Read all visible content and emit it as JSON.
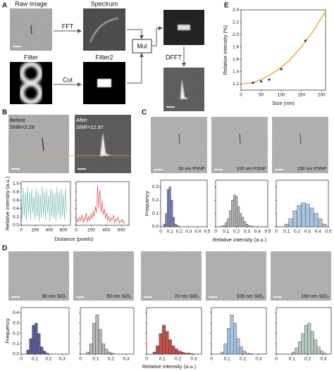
{
  "figure": {
    "A": {
      "letter": "A",
      "raw": "Raw Image",
      "spectrum": "Spectrum",
      "fft": "FFT",
      "filter": "Filter",
      "cut": "Cut",
      "filter2": "Filter2",
      "mul": "Mul",
      "dfft": "DFFT"
    },
    "B": {
      "letter": "B",
      "before": "Before",
      "snr_before": "SNR=2.29",
      "after": "After",
      "snr_after": "SNR=12.97",
      "xlabel": "Distance (pixels)"
    },
    "C": {
      "letter": "C",
      "images": [
        "50 nm PSNP",
        "100 nm PSNP",
        "150 nm PSNP"
      ],
      "xlabel": "Relative intensity (a.u.)"
    },
    "D": {
      "letter": "D",
      "images": [
        "30 nm SiO₂",
        "50 nm SiO₂",
        "70 nm SiO₂",
        "100 nm SiO₂",
        "160 nm SiO₂"
      ],
      "xlabel": "Relative intensity (a.u.)"
    },
    "E": {
      "letter": "E"
    }
  },
  "chart_data": [
    {
      "type": "scatter",
      "xlabel": "Size (nm)",
      "ylabel": "Relative intensity (%)",
      "xlim": [
        0,
        210
      ],
      "ylim": [
        1.1,
        2.4
      ],
      "xticks": [
        0,
        50,
        100,
        150,
        200
      ],
      "yticks": [
        1.2,
        1.4,
        1.6,
        1.8,
        {
          "value": 2,
          "label": "2.0"
        },
        2.2,
        2.4
      ],
      "show_ytick_labels": true,
      "series": [
        {
          "mode": "markers",
          "color": "#2f3b5c",
          "x": [
            30,
            50,
            70,
            100,
            160
          ],
          "values": [
            1.22,
            1.24,
            1.27,
            1.44,
            1.9
          ]
        },
        {
          "mode": "line",
          "color": "#e8a020",
          "x": [
            0,
            30,
            60,
            90,
            120,
            150,
            180,
            210
          ],
          "values": [
            1.2,
            1.22,
            1.3,
            1.42,
            1.58,
            1.8,
            2.06,
            2.37
          ]
        }
      ]
    },
    {
      "type": "line",
      "ylabel": "Relative intensity (a.u.)",
      "xlim": [
        0,
        700
      ],
      "ylim": [
        0,
        1.05
      ],
      "xticks": [
        0,
        200,
        400,
        600
      ],
      "yticks": [
        {
          "value": 0,
          "label": "0.0"
        },
        0.2,
        0.4,
        0.6,
        0.8,
        {
          "value": 1,
          "label": "1.0"
        }
      ],
      "show_ytick_labels": true,
      "series": [
        {
          "mode": "line",
          "color": "#7fbfb8",
          "x": [
            0,
            15,
            30,
            45,
            60,
            75,
            90,
            105,
            120,
            135,
            150,
            165,
            180,
            195,
            210,
            225,
            240,
            255,
            270,
            285,
            300,
            315,
            330,
            345,
            360,
            375,
            390,
            405,
            420,
            435,
            450,
            465,
            480,
            495,
            510,
            525,
            540,
            555,
            570,
            585,
            600,
            615,
            630,
            645
          ],
          "values": [
            0.85,
            0.12,
            0.9,
            0.2,
            0.78,
            0.1,
            0.92,
            0.25,
            0.8,
            0.15,
            0.88,
            0.3,
            0.7,
            0.12,
            0.9,
            0.2,
            0.85,
            0.1,
            0.75,
            0.18,
            0.93,
            0.22,
            0.8,
            0.12,
            0.88,
            0.28,
            0.72,
            0.1,
            0.9,
            0.2,
            0.84,
            0.15,
            0.78,
            0.1,
            0.92,
            0.25,
            0.82,
            0.14,
            0.88,
            0.2,
            0.76,
            0.12,
            0.9,
            0.3
          ]
        }
      ]
    },
    {
      "type": "line",
      "xlim": [
        0,
        700
      ],
      "ylim": [
        0,
        1.05
      ],
      "xticks": [
        0,
        200,
        400,
        600
      ],
      "yticks": [
        0,
        0.2,
        0.4,
        0.6,
        0.8,
        1
      ],
      "show_ytick_labels": false,
      "series": [
        {
          "mode": "line",
          "color": "#d9534f",
          "x": [
            0,
            15,
            30,
            45,
            60,
            75,
            90,
            105,
            120,
            135,
            150,
            165,
            180,
            195,
            210,
            225,
            240,
            255,
            270,
            285,
            300,
            315,
            330,
            345,
            360,
            375,
            390,
            405,
            420,
            435,
            450,
            465,
            480,
            495,
            510,
            525,
            540,
            555,
            570,
            585,
            600,
            615,
            630,
            645
          ],
          "values": [
            0.05,
            0.15,
            0.08,
            0.2,
            0.1,
            0.25,
            0.06,
            0.18,
            0.12,
            0.3,
            0.08,
            0.22,
            0.1,
            0.28,
            0.15,
            0.35,
            0.2,
            0.45,
            0.3,
            0.95,
            0.4,
            0.85,
            0.3,
            0.6,
            0.25,
            0.4,
            0.15,
            0.3,
            0.1,
            0.22,
            0.08,
            0.18,
            0.12,
            0.25,
            0.06,
            0.15,
            0.1,
            0.2,
            0.05,
            0.12,
            0.08,
            0.15,
            0.05,
            0.1
          ]
        }
      ]
    },
    {
      "type": "histogram",
      "ylabel": "Frequency",
      "xlim": [
        0,
        0.5
      ],
      "ylim": [
        0,
        0.35
      ],
      "xticks": [
        0,
        0.1,
        0.2,
        0.3,
        0.4,
        0.5
      ],
      "yticks": [
        {
          "value": 0,
          "label": "0.0"
        },
        0.1,
        0.2,
        0.3
      ],
      "show_ytick_labels": true,
      "color": "#7f86bd",
      "bins": [
        0.03,
        0.05,
        0.07,
        0.09,
        0.11,
        0.13,
        0.15,
        0.17,
        0.19
      ],
      "values": [
        0.02,
        0.1,
        0.28,
        0.3,
        0.2,
        0.07,
        0.02,
        0.01
      ]
    },
    {
      "type": "histogram",
      "xlim": [
        0,
        0.5
      ],
      "ylim": [
        0,
        0.35
      ],
      "xticks": [
        0,
        0.1,
        0.2,
        0.3,
        0.4,
        0.5
      ],
      "yticks": [
        0,
        0.1,
        0.2,
        0.3
      ],
      "show_ytick_labels": false,
      "color": "#b8b8b8",
      "bins": [
        0.05,
        0.07,
        0.09,
        0.11,
        0.13,
        0.15,
        0.17,
        0.19,
        0.21,
        0.23,
        0.25,
        0.27,
        0.29,
        0.31,
        0.33,
        0.35,
        0.37
      ],
      "values": [
        0.005,
        0.01,
        0.03,
        0.06,
        0.12,
        0.2,
        0.24,
        0.23,
        0.15,
        0.1,
        0.07,
        0.04,
        0.02,
        0.01,
        0.005,
        0.003
      ]
    },
    {
      "type": "histogram",
      "xlim": [
        0,
        0.5
      ],
      "ylim": [
        0,
        0.35
      ],
      "xticks": [
        0,
        0.1,
        0.2,
        0.3,
        0.4,
        0.5
      ],
      "yticks": [
        0,
        0.1,
        0.2,
        0.3
      ],
      "show_ytick_labels": false,
      "color": "#a8c4e0",
      "bins": [
        0.08,
        0.12,
        0.16,
        0.2,
        0.24,
        0.28,
        0.32,
        0.36,
        0.4,
        0.44,
        0.48
      ],
      "values": [
        0.02,
        0.06,
        0.12,
        0.16,
        0.18,
        0.17,
        0.14,
        0.1,
        0.06,
        0.02
      ]
    },
    {
      "type": "histogram",
      "ylabel": "Frequency",
      "xlim": [
        0,
        0.35
      ],
      "ylim": [
        0,
        0.45
      ],
      "xticks": [
        0,
        0.1,
        0.2,
        0.3
      ],
      "yticks": [
        {
          "value": 0,
          "label": "0.0"
        },
        0.1,
        0.2,
        0.3,
        0.4
      ],
      "show_ytick_labels": true,
      "color": "#5a5f99",
      "bins": [
        0.04,
        0.06,
        0.08,
        0.1,
        0.12,
        0.14,
        0.16,
        0.18,
        0.2
      ],
      "values": [
        0.04,
        0.15,
        0.28,
        0.3,
        0.2,
        0.07,
        0.03,
        0.01
      ]
    },
    {
      "type": "histogram",
      "xlim": [
        0,
        0.35
      ],
      "ylim": [
        0,
        0.45
      ],
      "xticks": [
        0,
        0.1,
        0.2,
        0.3
      ],
      "yticks": [
        0,
        0.1,
        0.2,
        0.3,
        0.4
      ],
      "show_ytick_labels": false,
      "color": "#b5b5b5",
      "bins": [
        0.04,
        0.06,
        0.08,
        0.1,
        0.12,
        0.14,
        0.16,
        0.18,
        0.2,
        0.22
      ],
      "values": [
        0.02,
        0.1,
        0.3,
        0.38,
        0.24,
        0.1,
        0.05,
        0.02,
        0.01
      ]
    },
    {
      "type": "histogram",
      "xlim": [
        0,
        0.35
      ],
      "ylim": [
        0,
        0.45
      ],
      "xticks": [
        0,
        0.1,
        0.2,
        0.3
      ],
      "yticks": [
        0,
        0.1,
        0.2,
        0.3,
        0.4
      ],
      "show_ytick_labels": false,
      "color": "#c0504d",
      "bins": [
        0.04,
        0.06,
        0.08,
        0.1,
        0.12,
        0.14,
        0.16,
        0.18,
        0.2,
        0.22,
        0.24,
        0.26,
        0.28,
        0.3
      ],
      "values": [
        0.02,
        0.08,
        0.2,
        0.28,
        0.22,
        0.14,
        0.08,
        0.05,
        0.03,
        0.02,
        0.01,
        0.01,
        0.005
      ]
    },
    {
      "type": "histogram",
      "xlim": [
        0,
        0.35
      ],
      "ylim": [
        0,
        0.45
      ],
      "xticks": [
        0,
        0.1,
        0.2,
        0.3
      ],
      "yticks": [
        0,
        0.1,
        0.2,
        0.3,
        0.4
      ],
      "show_ytick_labels": false,
      "color": "#a8c4e0",
      "bins": [
        0.06,
        0.08,
        0.1,
        0.12,
        0.14,
        0.16,
        0.18,
        0.2,
        0.22,
        0.24,
        0.26
      ],
      "values": [
        0.02,
        0.1,
        0.25,
        0.38,
        0.3,
        0.15,
        0.07,
        0.03,
        0.01,
        0.005
      ]
    },
    {
      "type": "histogram",
      "xlim": [
        0,
        0.35
      ],
      "ylim": [
        0,
        0.45
      ],
      "xticks": [
        0,
        0.1,
        0.2,
        0.3
      ],
      "yticks": [
        0,
        0.1,
        0.2,
        0.3,
        0.4
      ],
      "show_ytick_labels": false,
      "color": "#b8cbbf",
      "bins": [
        0.1,
        0.12,
        0.14,
        0.16,
        0.18,
        0.2,
        0.22,
        0.24,
        0.26,
        0.28,
        0.3,
        0.32
      ],
      "values": [
        0.02,
        0.06,
        0.12,
        0.2,
        0.28,
        0.3,
        0.22,
        0.14,
        0.07,
        0.03,
        0.01
      ]
    }
  ]
}
